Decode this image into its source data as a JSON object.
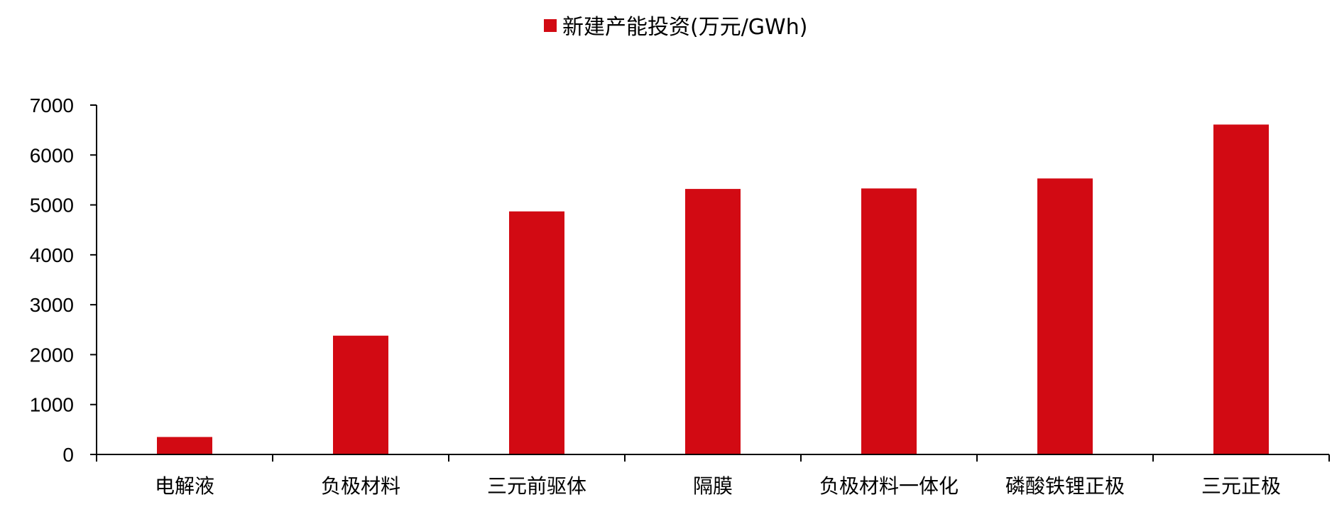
{
  "chart_data": {
    "type": "bar",
    "categories": [
      "电解液",
      "负极材料",
      "三元前驱体",
      "隔膜",
      "负极材料一体化",
      "磷酸铁锂正极",
      "三元正极"
    ],
    "series": [
      {
        "name": "新建产能投资(万元/GWh)",
        "values": [
          350,
          2380,
          4870,
          5320,
          5330,
          5530,
          6610
        ]
      }
    ],
    "ylim": [
      0,
      7000
    ],
    "yticks": [
      0,
      1000,
      2000,
      3000,
      4000,
      5000,
      6000,
      7000
    ],
    "legend_position": "top-center",
    "grid": false,
    "colors": {
      "bar": "#d20a13",
      "axis": "#000000"
    }
  }
}
